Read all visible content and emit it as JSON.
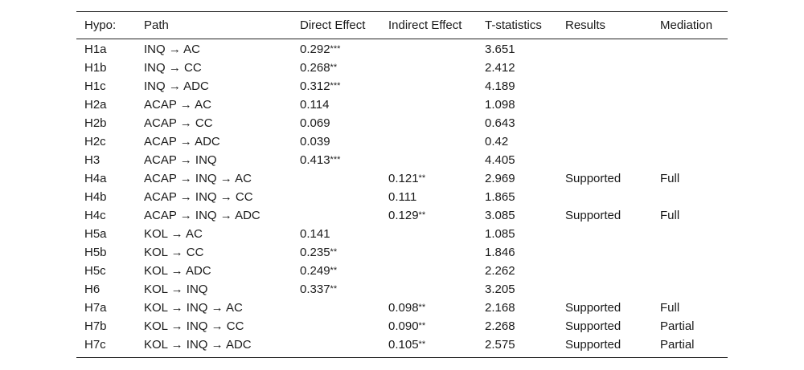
{
  "table": {
    "headers": [
      "Hypo:",
      "Path",
      "Direct Effect",
      "Indirect Effect",
      "T-statistics",
      "Results",
      "Mediation"
    ],
    "rows": [
      {
        "hypo": "H1a",
        "path": "INQ → AC",
        "direct": "0.292",
        "direct_sig": "***",
        "indirect": "",
        "indirect_sig": "",
        "t": "3.651",
        "results": "",
        "mediation": ""
      },
      {
        "hypo": "H1b",
        "path": "INQ → CC",
        "direct": "0.268",
        "direct_sig": "**",
        "indirect": "",
        "indirect_sig": "",
        "t": "2.412",
        "results": "",
        "mediation": ""
      },
      {
        "hypo": "H1c",
        "path": "INQ → ADC",
        "direct": "0.312",
        "direct_sig": "***",
        "indirect": "",
        "indirect_sig": "",
        "t": "4.189",
        "results": "",
        "mediation": ""
      },
      {
        "hypo": "H2a",
        "path": "ACAP → AC",
        "direct": "0.114",
        "direct_sig": "",
        "indirect": "",
        "indirect_sig": "",
        "t": "1.098",
        "results": "",
        "mediation": ""
      },
      {
        "hypo": "H2b",
        "path": "ACAP → CC",
        "direct": "0.069",
        "direct_sig": "",
        "indirect": "",
        "indirect_sig": "",
        "t": "0.643",
        "results": "",
        "mediation": ""
      },
      {
        "hypo": "H2c",
        "path": "ACAP → ADC",
        "direct": "0.039",
        "direct_sig": "",
        "indirect": "",
        "indirect_sig": "",
        "t": "0.42",
        "results": "",
        "mediation": ""
      },
      {
        "hypo": "H3",
        "path": "ACAP → INQ",
        "direct": "0.413",
        "direct_sig": "***",
        "indirect": "",
        "indirect_sig": "",
        "t": "4.405",
        "results": "",
        "mediation": ""
      },
      {
        "hypo": "H4a",
        "path": "ACAP → INQ → AC",
        "direct": "",
        "direct_sig": "",
        "indirect": "0.121",
        "indirect_sig": "**",
        "t": "2.969",
        "results": "Supported",
        "mediation": "Full"
      },
      {
        "hypo": "H4b",
        "path": "ACAP → INQ → CC",
        "direct": "",
        "direct_sig": "",
        "indirect": "0.111",
        "indirect_sig": "",
        "t": "1.865",
        "results": "",
        "mediation": ""
      },
      {
        "hypo": "H4c",
        "path": "ACAP → INQ → ADC",
        "direct": "",
        "direct_sig": "",
        "indirect": "0.129",
        "indirect_sig": "**",
        "t": "3.085",
        "results": "Supported",
        "mediation": "Full"
      },
      {
        "hypo": "H5a",
        "path": "KOL → AC",
        "direct": "0.141",
        "direct_sig": "",
        "indirect": "",
        "indirect_sig": "",
        "t": "1.085",
        "results": "",
        "mediation": ""
      },
      {
        "hypo": "H5b",
        "path": "KOL → CC",
        "direct": "0.235",
        "direct_sig": "**",
        "indirect": "",
        "indirect_sig": "",
        "t": "1.846",
        "results": "",
        "mediation": ""
      },
      {
        "hypo": "H5c",
        "path": "KOL → ADC",
        "direct": "0.249",
        "direct_sig": "**",
        "indirect": "",
        "indirect_sig": "",
        "t": "2.262",
        "results": "",
        "mediation": ""
      },
      {
        "hypo": "H6",
        "path": "KOL → INQ",
        "direct": "0.337",
        "direct_sig": "**",
        "indirect": "",
        "indirect_sig": "",
        "t": "3.205",
        "results": "",
        "mediation": ""
      },
      {
        "hypo": "H7a",
        "path": "KOL → INQ → AC",
        "direct": "",
        "direct_sig": "",
        "indirect": "0.098",
        "indirect_sig": "**",
        "t": "2.168",
        "results": "Supported",
        "mediation": "Full"
      },
      {
        "hypo": "H7b",
        "path": "KOL → INQ → CC",
        "direct": "",
        "direct_sig": "",
        "indirect": "0.090",
        "indirect_sig": "**",
        "t": "2.268",
        "results": "Supported",
        "mediation": "Partial"
      },
      {
        "hypo": "H7c",
        "path": "KOL → INQ → ADC",
        "direct": "",
        "direct_sig": "",
        "indirect": "0.105",
        "indirect_sig": "**",
        "t": "2.575",
        "results": "Supported",
        "mediation": "Partial"
      }
    ]
  }
}
